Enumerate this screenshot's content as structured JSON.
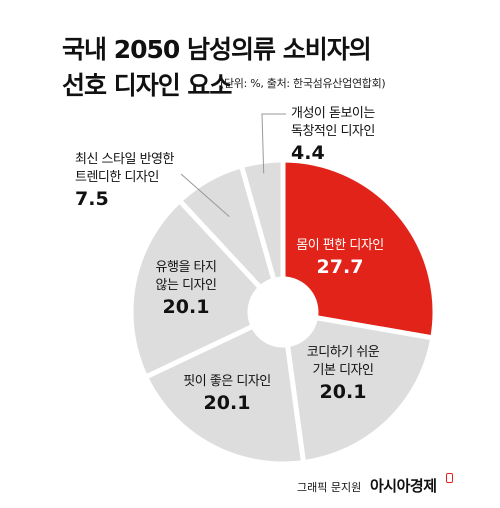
{
  "title_line1": "국내 2050 남성의류 소비자의",
  "title_line2": "선호 디자인 요소",
  "subtitle": "(단위: %, 출처: 한국섬유산업연합회)",
  "credit": "그래픽 문지원",
  "brand": "아시아경제",
  "colors": {
    "highlight": "#e2231a",
    "slice": "#dddddd",
    "separator": "#ffffff",
    "leader": "#999999"
  },
  "chart_data": {
    "type": "pie",
    "style": "donut",
    "categories": [
      "몸이 편한 디자인",
      "코디하기 쉬운 기본 디자인",
      "핏이 좋은 디자인",
      "유행을 타지 않는 디자인",
      "최신 스타일 반영한 트렌디한 디자인",
      "개성이 돋보이는 독창적인 디자인"
    ],
    "values": [
      27.7,
      20.1,
      20.1,
      20.1,
      7.5,
      4.4
    ],
    "value_labels": [
      "27.7",
      "20.1",
      "20.1",
      "20.1",
      "7.5",
      "4.4"
    ],
    "label_lines": [
      [
        "몸이 편한 디자인"
      ],
      [
        "코디하기 쉬운",
        "기본 디자인"
      ],
      [
        "핏이 좋은 디자인"
      ],
      [
        "유행을 타지",
        "않는 디자인"
      ],
      [
        "최신 스타일 반영한",
        "트렌디한 디자인"
      ],
      [
        "개성이 돋보이는",
        "독창적인 디자인"
      ]
    ],
    "highlight_index": 0
  }
}
